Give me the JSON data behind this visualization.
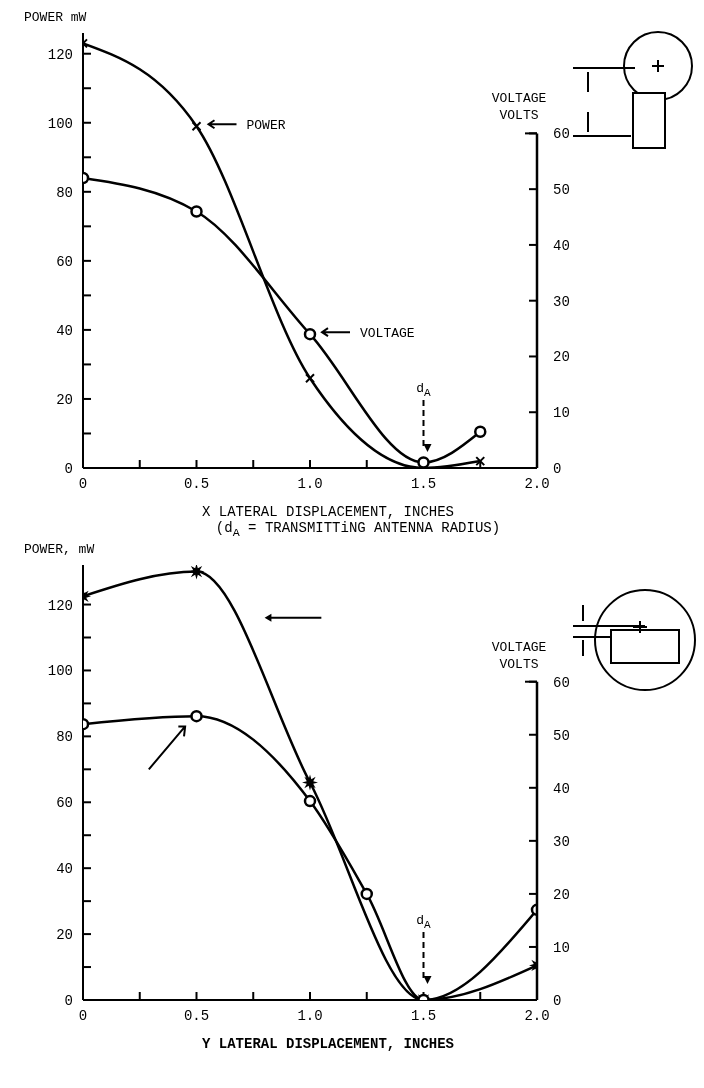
{
  "chart_data": [
    {
      "type": "line",
      "ylabel": "POWER mW",
      "y2label": "VOLTAGE VOLTS",
      "xlabel": "X LATERAL DISPLACEMENT, INCHES",
      "annotations": [
        "(d$_{A}$ = TRANSMITTiNG ANTENNA RADIUS)"
      ],
      "ref_lines": [
        {
          "axis": "x",
          "value": 1.5,
          "label": "d$_{A}$",
          "line_style": "dashed"
        }
      ],
      "xlim": [
        0,
        2
      ],
      "xticks": [
        0,
        {
          "value": 0.25,
          "label": null
        },
        0.5,
        {
          "value": 0.75,
          "label": null
        },
        {
          "value": 1,
          "label": "1.0"
        },
        {
          "value": 1.25,
          "label": null
        },
        1.5,
        {
          "value": 1.75,
          "label": null
        },
        {
          "value": 2,
          "label": "2.0"
        }
      ],
      "ylim": [
        0,
        126
      ],
      "yticks": [
        0,
        {
          "value": 10,
          "label": null
        },
        20,
        {
          "value": 30,
          "label": null
        },
        40,
        {
          "value": 50,
          "label": null
        },
        60,
        {
          "value": 70,
          "label": null
        },
        80,
        {
          "value": 90,
          "label": null
        },
        100,
        {
          "value": 110,
          "label": null
        },
        120
      ],
      "y2lim": [
        0,
        78
      ],
      "y2ticks": [
        0,
        10,
        20,
        30,
        40,
        50,
        60
      ],
      "legend": "right",
      "series": [
        {
          "name": "POWER",
          "color": "#000000",
          "marker": "cross",
          "x": [
            0,
            0.5,
            1,
            1.5,
            1.75
          ],
          "values": [
            123,
            99,
            26,
            0,
            2
          ]
        },
        {
          "name": "VOLTAGE",
          "color": "#000000",
          "marker": "circle",
          "axis": "y2",
          "x": [
            0,
            0.5,
            1,
            1.5,
            1.75
          ],
          "values": [
            52,
            46,
            24,
            1,
            6.5
          ]
        }
      ]
    },
    {
      "type": "line",
      "ylabel": "POWER, mW",
      "y2label": "VOLTAGE VOLTS",
      "xlabel": "Y LATERAL DISPLACEMENT, INCHES",
      "ref_lines": [
        {
          "axis": "x",
          "value": 1.5,
          "label": "d$_{A}$",
          "line_style": "dashed"
        }
      ],
      "xlim": [
        0,
        2
      ],
      "xticks": [
        0,
        {
          "value": 0.25,
          "label": null
        },
        0.5,
        {
          "value": 0.75,
          "label": null
        },
        {
          "value": 1,
          "label": "1.0"
        },
        {
          "value": 1.25,
          "label": null
        },
        1.5,
        {
          "value": 1.75,
          "label": null
        },
        {
          "value": 2,
          "label": "2.0"
        }
      ],
      "ylim": [
        0,
        132
      ],
      "yticks": [
        0,
        {
          "value": 10,
          "label": null
        },
        20,
        {
          "value": 30,
          "label": null
        },
        40,
        {
          "value": 50,
          "label": null
        },
        60,
        {
          "value": 70,
          "label": null
        },
        80,
        {
          "value": 90,
          "label": null
        },
        100,
        {
          "value": 110,
          "label": null
        },
        120
      ],
      "y2lim": [
        0,
        82
      ],
      "y2ticks": [
        0,
        10,
        20,
        30,
        40,
        50,
        60
      ],
      "series": [
        {
          "color": "#000000",
          "marker": "star",
          "x": [
            0,
            0.5,
            1,
            1.5,
            2
          ],
          "values": [
            122.5,
            130,
            66,
            0,
            10.5
          ]
        },
        {
          "color": "#000000",
          "marker": "circle",
          "axis": "y2",
          "x": [
            0,
            0.5,
            1,
            1.25,
            1.5,
            2
          ],
          "values": [
            52,
            53.5,
            37.5,
            20,
            0,
            17
          ]
        }
      ]
    }
  ]
}
